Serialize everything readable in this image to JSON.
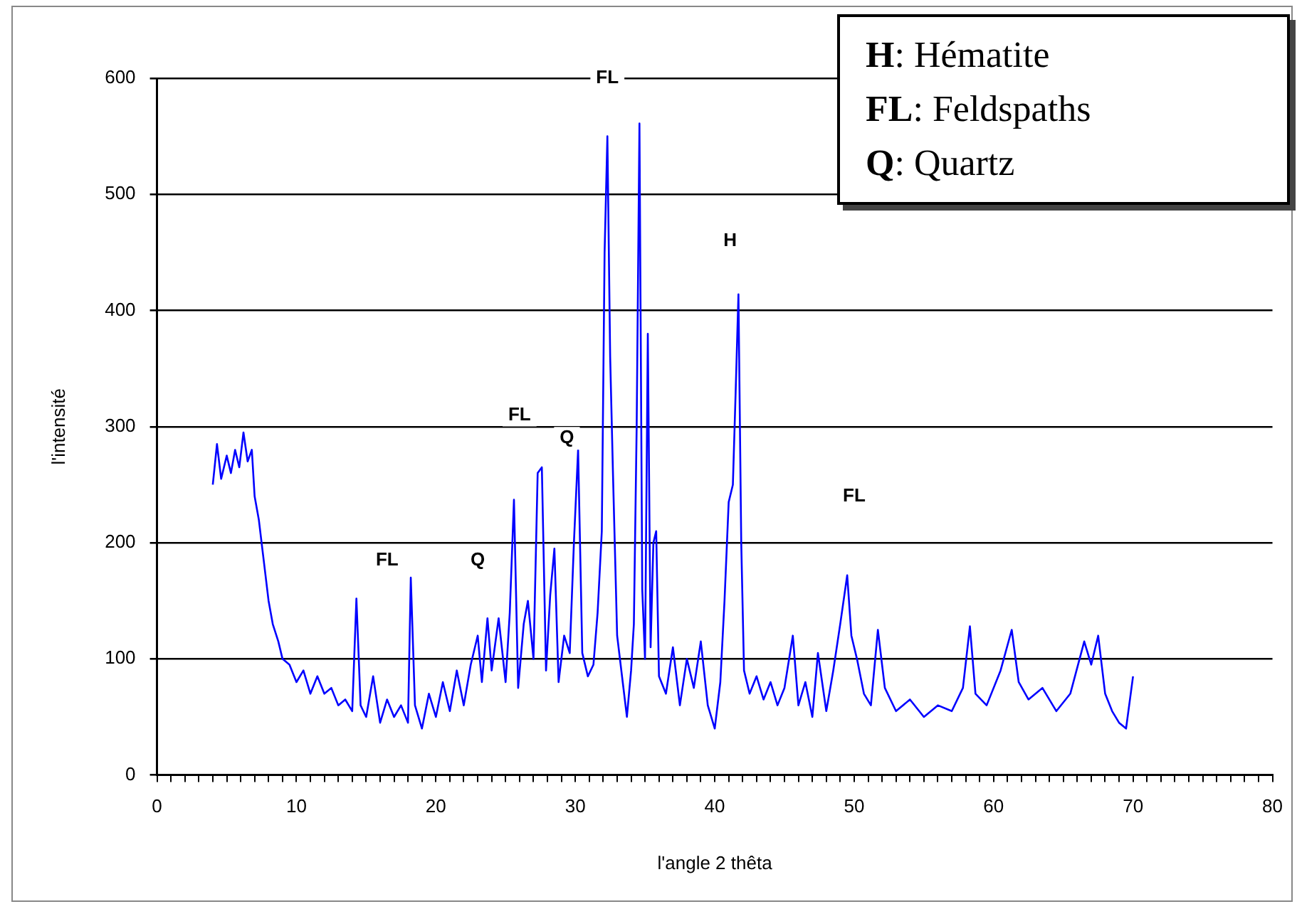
{
  "chart_data": {
    "type": "line",
    "xlabel": "l'angle 2 thêta",
    "ylabel": "l'intensité",
    "series": [
      {
        "color": "#0000ff",
        "x": [
          4.0,
          4.3,
          4.6,
          5.0,
          5.3,
          5.6,
          5.9,
          6.2,
          6.5,
          6.8,
          7.0,
          7.3,
          7.6,
          8.0,
          8.3,
          8.7,
          9.0,
          9.5,
          10,
          10.5,
          11,
          11.5,
          12,
          12.5,
          13,
          13.5,
          14,
          14.3,
          14.6,
          15,
          15.5,
          16,
          16.5,
          17,
          17.5,
          18,
          18.2,
          18.5,
          19,
          19.5,
          20,
          20.5,
          21,
          21.5,
          22,
          22.5,
          23,
          23.3,
          23.7,
          24,
          24.5,
          25,
          25.3,
          25.6,
          25.9,
          26.3,
          26.6,
          27,
          27.3,
          27.6,
          27.9,
          28.2,
          28.5,
          28.8,
          29.2,
          29.6,
          29.9,
          30.2,
          30.5,
          30.9,
          31.3,
          31.6,
          31.9,
          32.1,
          32.3,
          32.5,
          32.7,
          33.0,
          33.4,
          33.7,
          34.0,
          34.2,
          34.4,
          34.6,
          34.8,
          35.0,
          35.2,
          35.4,
          35.6,
          35.8,
          36.0,
          36.5,
          37,
          37.5,
          38,
          38.5,
          39,
          39.5,
          40,
          40.4,
          40.7,
          41.0,
          41.3,
          41.5,
          41.7,
          41.9,
          42.1,
          42.5,
          43,
          43.5,
          44,
          44.5,
          45,
          45.6,
          46,
          46.5,
          47,
          47.4,
          48,
          48.5,
          49,
          49.5,
          49.8,
          50.2,
          50.7,
          51.2,
          51.7,
          52.2,
          53,
          54,
          55,
          56,
          57,
          57.8,
          58.3,
          58.7,
          59.5,
          60.5,
          61.3,
          61.8,
          62.5,
          63.5,
          64.5,
          65.5,
          66.5,
          67,
          67.5,
          68,
          68.5,
          69,
          69.5,
          70
        ],
        "values": [
          250,
          285,
          255,
          275,
          260,
          280,
          265,
          295,
          270,
          280,
          240,
          220,
          190,
          150,
          130,
          115,
          100,
          95,
          80,
          90,
          70,
          85,
          70,
          75,
          60,
          65,
          55,
          152,
          60,
          50,
          85,
          45,
          65,
          50,
          60,
          45,
          170,
          60,
          40,
          70,
          50,
          80,
          55,
          90,
          60,
          95,
          120,
          80,
          135,
          90,
          135,
          80,
          140,
          237,
          75,
          130,
          150,
          100,
          260,
          265,
          90,
          155,
          195,
          80,
          120,
          105,
          200,
          280,
          105,
          85,
          95,
          140,
          210,
          450,
          550,
          360,
          260,
          120,
          80,
          50,
          90,
          130,
          300,
          561,
          160,
          100,
          380,
          110,
          200,
          210,
          85,
          70,
          110,
          60,
          100,
          75,
          115,
          60,
          40,
          80,
          150,
          235,
          250,
          330,
          414,
          200,
          90,
          70,
          85,
          65,
          80,
          60,
          75,
          120,
          60,
          80,
          50,
          105,
          55,
          90,
          130,
          172,
          120,
          100,
          70,
          60,
          125,
          75,
          55,
          65,
          50,
          60,
          55,
          75,
          128,
          70,
          60,
          90,
          125,
          80,
          65,
          75,
          55,
          70,
          115,
          95,
          120,
          70,
          55,
          45,
          40,
          85
        ]
      }
    ],
    "xlim": [
      0,
      80
    ],
    "xticks": [
      0,
      {
        "value": 1,
        "label": null
      },
      {
        "value": 2,
        "label": null
      },
      {
        "value": 3,
        "label": null
      },
      {
        "value": 4,
        "label": null
      },
      {
        "value": 5,
        "label": null
      },
      {
        "value": 6,
        "label": null
      },
      {
        "value": 7,
        "label": null
      },
      {
        "value": 8,
        "label": null
      },
      {
        "value": 9,
        "label": null
      },
      10,
      {
        "value": 11,
        "label": null
      },
      {
        "value": 12,
        "label": null
      },
      {
        "value": 13,
        "label": null
      },
      {
        "value": 14,
        "label": null
      },
      {
        "value": 15,
        "label": null
      },
      {
        "value": 16,
        "label": null
      },
      {
        "value": 17,
        "label": null
      },
      {
        "value": 18,
        "label": null
      },
      {
        "value": 19,
        "label": null
      },
      20,
      {
        "value": 21,
        "label": null
      },
      {
        "value": 22,
        "label": null
      },
      {
        "value": 23,
        "label": null
      },
      {
        "value": 24,
        "label": null
      },
      {
        "value": 25,
        "label": null
      },
      {
        "value": 26,
        "label": null
      },
      {
        "value": 27,
        "label": null
      },
      {
        "value": 28,
        "label": null
      },
      {
        "value": 29,
        "label": null
      },
      30,
      {
        "value": 31,
        "label": null
      },
      {
        "value": 32,
        "label": null
      },
      {
        "value": 33,
        "label": null
      },
      {
        "value": 34,
        "label": null
      },
      {
        "value": 35,
        "label": null
      },
      {
        "value": 36,
        "label": null
      },
      {
        "value": 37,
        "label": null
      },
      {
        "value": 38,
        "label": null
      },
      {
        "value": 39,
        "label": null
      },
      40,
      {
        "value": 41,
        "label": null
      },
      {
        "value": 42,
        "label": null
      },
      {
        "value": 43,
        "label": null
      },
      {
        "value": 44,
        "label": null
      },
      {
        "value": 45,
        "label": null
      },
      {
        "value": 46,
        "label": null
      },
      {
        "value": 47,
        "label": null
      },
      {
        "value": 48,
        "label": null
      },
      {
        "value": 49,
        "label": null
      },
      50,
      {
        "value": 51,
        "label": null
      },
      {
        "value": 52,
        "label": null
      },
      {
        "value": 53,
        "label": null
      },
      {
        "value": 54,
        "label": null
      },
      {
        "value": 55,
        "label": null
      },
      {
        "value": 56,
        "label": null
      },
      {
        "value": 57,
        "label": null
      },
      {
        "value": 58,
        "label": null
      },
      {
        "value": 59,
        "label": null
      },
      60,
      {
        "value": 61,
        "label": null
      },
      {
        "value": 62,
        "label": null
      },
      {
        "value": 63,
        "label": null
      },
      {
        "value": 64,
        "label": null
      },
      {
        "value": 65,
        "label": null
      },
      {
        "value": 66,
        "label": null
      },
      {
        "value": 67,
        "label": null
      },
      {
        "value": 68,
        "label": null
      },
      {
        "value": 69,
        "label": null
      },
      70,
      {
        "value": 71,
        "label": null
      },
      {
        "value": 72,
        "label": null
      },
      {
        "value": 73,
        "label": null
      },
      {
        "value": 74,
        "label": null
      },
      {
        "value": 75,
        "label": null
      },
      {
        "value": 76,
        "label": null
      },
      {
        "value": 77,
        "label": null
      },
      {
        "value": 78,
        "label": null
      },
      {
        "value": 79,
        "label": null
      },
      80
    ],
    "ylim": [
      0,
      600
    ],
    "yticks": [
      0,
      100,
      200,
      300,
      400,
      500,
      600
    ],
    "grid": "y",
    "marker": "none",
    "line_style": "solid",
    "annotations": [
      "H: Hématite",
      "FL: Feldspaths",
      "Q: Quartz",
      {
        "text": "FL",
        "x": 32.3,
        "y": 600
      },
      {
        "text": "H",
        "x": 41.1,
        "y": 460
      },
      {
        "text": "FL",
        "x": 26,
        "y": 310
      },
      {
        "text": "Q",
        "x": 29.4,
        "y": 290
      },
      {
        "text": "FL",
        "x": 16.5,
        "y": 185
      },
      {
        "text": "Q",
        "x": 23,
        "y": 185
      },
      {
        "text": "FL",
        "x": 50,
        "y": 240
      }
    ]
  }
}
